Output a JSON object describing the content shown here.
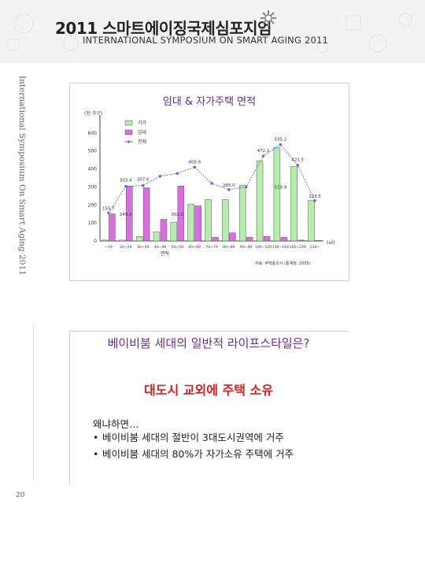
{
  "header": {
    "title_ko": "2011 스마트에이징국제심포지엄",
    "title_en": "INTERNATIONAL SYMPOSIUM ON SMART AGING  2011"
  },
  "side_text": "International Symposium On Smart Aging 2011",
  "page_number": "20",
  "slide1": {
    "title": "임대 & 자가주택 면적",
    "chart_data": {
      "type": "bar",
      "title": "임대 & 자가주택 면적",
      "ylabel": "(천 가구)",
      "xlabel": "면적",
      "xunit": "(㎡)",
      "source": "자료: 주택총조사 (통계청, 2005)",
      "ylim": [
        0,
        700
      ],
      "yticks": [
        "0",
        "100",
        "200",
        "300",
        "400",
        "500",
        "600"
      ],
      "categories": [
        "~19",
        "20~29",
        "30~39",
        "40~49",
        "50~59",
        "60~69",
        "70~79",
        "80~89",
        "90~99",
        "100~129",
        "130~164",
        "165~229",
        "230~"
      ],
      "series": [
        {
          "name": "기가",
          "color": "#b6ecae",
          "values": [
            5,
            5,
            25,
            50,
            105,
            205,
            230,
            230,
            310,
            445,
            520,
            415,
            225
          ]
        },
        {
          "name": "임대",
          "color": "#d96ee0",
          "values": [
            150,
            305,
            295,
            120,
            305,
            195,
            20,
            45,
            20,
            25,
            20,
            5,
            3
          ]
        },
        {
          "name": "전체",
          "color": "#6b6bd6",
          "values": [
            155.7,
            303.4,
            307.6,
            360,
            375,
            409.9,
            320,
            285,
            300,
            472.1,
            535.2,
            421.5,
            223.5
          ]
        }
      ],
      "annotations": [
        "535.2",
        "472.1",
        "421.5",
        "409.9",
        "303.4",
        "307.6",
        "285.0",
        "155.7",
        "223.5",
        "519.9",
        "249.0",
        "302.0"
      ]
    }
  },
  "slide2": {
    "question": "베이비붐 세대의 일반적 라이프스타일은?",
    "answer": "대도시 교외에 주택 소유",
    "because": "왜냐하면…",
    "bullets": [
      "베이비붐 세대의 절반이 3대도시권역에 거주",
      "베이비붐 세대의 80%가 자가소유 주택에 거주"
    ]
  }
}
